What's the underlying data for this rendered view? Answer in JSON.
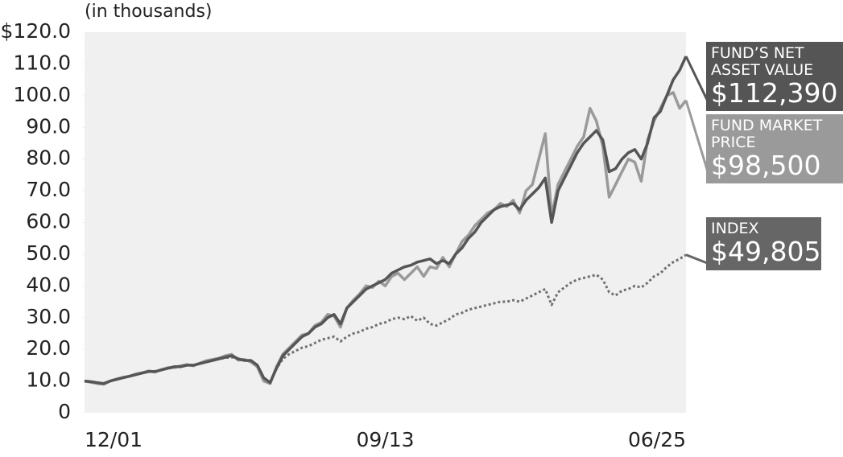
{
  "chart_data": {
    "type": "line",
    "subtitle": "(in thousands)",
    "categories": [
      "12/01",
      null,
      null,
      null,
      null,
      null,
      null,
      null,
      null,
      null,
      null,
      null,
      null,
      null,
      null,
      null,
      null,
      null,
      null,
      null,
      null,
      null,
      null,
      null,
      null,
      null,
      null,
      null,
      null,
      null,
      null,
      null,
      null,
      null,
      null,
      null,
      null,
      null,
      null,
      null,
      null,
      null,
      null,
      null,
      null,
      null,
      null,
      "09/13",
      null,
      null,
      null,
      null,
      null,
      null,
      null,
      null,
      null,
      null,
      null,
      null,
      null,
      null,
      null,
      null,
      null,
      null,
      null,
      null,
      null,
      null,
      null,
      null,
      null,
      null,
      null,
      null,
      null,
      null,
      null,
      null,
      null,
      null,
      null,
      null,
      null,
      null,
      null,
      null,
      null,
      null,
      null,
      null,
      null,
      null,
      "06/25"
    ],
    "ylim": [
      0,
      120
    ],
    "yticks": [
      0,
      {
        "value": 10,
        "label": "10.0"
      },
      {
        "value": 20,
        "label": "20.0"
      },
      {
        "value": 30,
        "label": "30.0"
      },
      {
        "value": 40,
        "label": "40.0"
      },
      {
        "value": 50,
        "label": "50.0"
      },
      {
        "value": 60,
        "label": "60.0"
      },
      {
        "value": 70,
        "label": "70.0"
      },
      {
        "value": 80,
        "label": "80.0"
      },
      {
        "value": 90,
        "label": "90.0"
      },
      {
        "value": 100,
        "label": "100.0"
      },
      {
        "value": 110,
        "label": "110.0"
      },
      {
        "value": 120,
        "label": "$120.0"
      }
    ],
    "series": [
      {
        "name": "FUND’S NET ASSET VALUE",
        "color": "#555555",
        "dash": false,
        "values": [
          10,
          9.8,
          9.5,
          9.2,
          10,
          10.5,
          11,
          11.5,
          12,
          12.5,
          13,
          13,
          13.5,
          14,
          14.5,
          14.5,
          15,
          15,
          15.5,
          16,
          16.5,
          17,
          17.5,
          18,
          17,
          16.5,
          16.5,
          15,
          11,
          9.5,
          14,
          18,
          20,
          22,
          24,
          25,
          27,
          28,
          30,
          31,
          28,
          33,
          35,
          37,
          39,
          40,
          41,
          42,
          44,
          45,
          46,
          46.5,
          47.5,
          48,
          48.5,
          47,
          48,
          47,
          50,
          52,
          55,
          57,
          60,
          62,
          64,
          65,
          65.5,
          66,
          64,
          67,
          69,
          71,
          74,
          60,
          70,
          74,
          78,
          82,
          85,
          87,
          89,
          86,
          76,
          77,
          80,
          82,
          83,
          80,
          85,
          93,
          95,
          100,
          105,
          108,
          112.39
        ],
        "value_labels": [
          null,
          null,
          null,
          null,
          null,
          null,
          null,
          null,
          null,
          null,
          null,
          null,
          null,
          null,
          null,
          null,
          null,
          null,
          null,
          null,
          null,
          null,
          null,
          null,
          null,
          null,
          null,
          null,
          null,
          null,
          null,
          null,
          null,
          null,
          null,
          null,
          null,
          null,
          null,
          null,
          null,
          null,
          null,
          null,
          null,
          null,
          null,
          null,
          null,
          null,
          null,
          null,
          null,
          null,
          null,
          null,
          null,
          null,
          null,
          null,
          null,
          null,
          null,
          null,
          null,
          null,
          null,
          null,
          null,
          null,
          null,
          null,
          null,
          null,
          null,
          null,
          null,
          null,
          null,
          null,
          null,
          null,
          null,
          null,
          null,
          null,
          null,
          null,
          null,
          null,
          null,
          null,
          null,
          null,
          "$112,390"
        ]
      },
      {
        "name": "FUND MARKET PRICE",
        "color": "#9a9a9a",
        "dash": false,
        "values": [
          10,
          9.6,
          9.2,
          9,
          10,
          10.6,
          11.2,
          11.5,
          12.2,
          12.6,
          13.2,
          12.8,
          13.6,
          14.2,
          14.3,
          14.8,
          15.2,
          14.8,
          15.6,
          16.4,
          16.8,
          17.2,
          18,
          18.4,
          16.6,
          16.8,
          16,
          14.5,
          10,
          9.2,
          14.5,
          18.5,
          20.5,
          22.5,
          24.5,
          25,
          27.5,
          28.5,
          31,
          30.5,
          27,
          33,
          35.5,
          37.5,
          40,
          39.5,
          41.5,
          40,
          43,
          44,
          42,
          44,
          46,
          43,
          46,
          45.5,
          49,
          46,
          50,
          54,
          56,
          59,
          61,
          63,
          64,
          66,
          65,
          67,
          63,
          70,
          72,
          80,
          88,
          62,
          72,
          76,
          80,
          84,
          87,
          96,
          92,
          84,
          68,
          72,
          76,
          80,
          79,
          73,
          86,
          92,
          96,
          100,
          101,
          96,
          98.5
        ],
        "value_labels": [
          null,
          null,
          null,
          null,
          null,
          null,
          null,
          null,
          null,
          null,
          null,
          null,
          null,
          null,
          null,
          null,
          null,
          null,
          null,
          null,
          null,
          null,
          null,
          null,
          null,
          null,
          null,
          null,
          null,
          null,
          null,
          null,
          null,
          null,
          null,
          null,
          null,
          null,
          null,
          null,
          null,
          null,
          null,
          null,
          null,
          null,
          null,
          null,
          null,
          null,
          null,
          null,
          null,
          null,
          null,
          null,
          null,
          null,
          null,
          null,
          null,
          null,
          null,
          null,
          null,
          null,
          null,
          null,
          null,
          null,
          null,
          null,
          null,
          null,
          null,
          null,
          null,
          null,
          null,
          null,
          null,
          null,
          null,
          null,
          null,
          null,
          null,
          null,
          null,
          null,
          null,
          null,
          null,
          null,
          "$98,500"
        ]
      },
      {
        "name": "INDEX",
        "color": "#707070",
        "dash": true,
        "values": [
          10,
          9.8,
          9.5,
          9.3,
          10,
          10.5,
          11,
          11.5,
          12,
          12.5,
          13,
          13,
          13.5,
          14,
          14.2,
          14.5,
          15,
          15,
          15.5,
          16,
          16.5,
          17,
          17.3,
          17.5,
          17,
          16.5,
          16.5,
          15,
          11,
          9.8,
          14,
          17,
          18.5,
          19.5,
          20.5,
          21,
          22,
          23,
          23.5,
          24,
          22.5,
          24,
          25,
          25.5,
          26.5,
          27,
          28,
          28.5,
          29.5,
          30,
          29.5,
          30.5,
          29,
          30,
          28,
          27.5,
          28.5,
          29.5,
          31,
          31.5,
          32.5,
          33,
          33.5,
          34,
          34.5,
          35,
          35,
          35.5,
          35,
          36,
          37,
          38,
          39,
          34,
          38,
          39.5,
          41,
          42,
          42.5,
          43,
          43.5,
          42,
          38,
          37,
          38.5,
          39,
          40,
          39.5,
          41,
          43,
          44,
          46,
          47.5,
          48.5,
          49.805
        ],
        "value_labels": [
          null,
          null,
          null,
          null,
          null,
          null,
          null,
          null,
          null,
          null,
          null,
          null,
          null,
          null,
          null,
          null,
          null,
          null,
          null,
          null,
          null,
          null,
          null,
          null,
          null,
          null,
          null,
          null,
          null,
          null,
          null,
          null,
          null,
          null,
          null,
          null,
          null,
          null,
          null,
          null,
          null,
          null,
          null,
          null,
          null,
          null,
          null,
          null,
          null,
          null,
          null,
          null,
          null,
          null,
          null,
          null,
          null,
          null,
          null,
          null,
          null,
          null,
          null,
          null,
          null,
          null,
          null,
          null,
          null,
          null,
          null,
          null,
          null,
          null,
          null,
          null,
          null,
          null,
          null,
          null,
          null,
          null,
          null,
          null,
          null,
          null,
          null,
          null,
          null,
          null,
          null,
          null,
          null,
          null,
          "$49,805"
        ]
      }
    ]
  }
}
